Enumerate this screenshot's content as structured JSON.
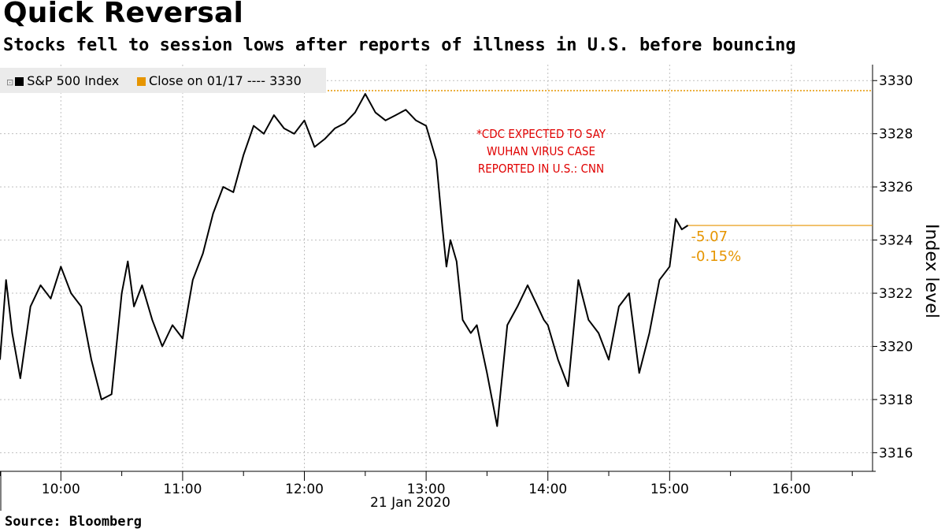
{
  "title": "Quick Reversal",
  "subtitle": "Stocks fell to session lows after reports of illness in U.S. before bouncing",
  "source": "Source:  Bloomberg",
  "colors": {
    "series": "#000000",
    "reference": "#e69500",
    "annotation": "#e00000",
    "grid": "#bfbfbf"
  },
  "legend": {
    "series_label": "S&P 500 Index",
    "reference_label": "Close on 01/17 ---- 3330"
  },
  "annotation": {
    "lines": [
      "*CDC EXPECTED TO SAY",
      "WUHAN VIRUS CASE",
      "REPORTED IN U.S.: CNN"
    ]
  },
  "change": {
    "points": "-5.07",
    "percent": "-0.15%"
  },
  "chart_data": {
    "type": "line",
    "title": "Quick Reversal",
    "subtitle": "Stocks fell to session lows after reports of illness in U.S. before bouncing",
    "xlabel": "21 Jan 2020",
    "ylabel": "Index level",
    "x_ticks": [
      "10:00",
      "11:00",
      "12:00",
      "13:00",
      "14:00",
      "15:00",
      "16:00"
    ],
    "y_ticks": [
      3316,
      3318,
      3320,
      3322,
      3324,
      3326,
      3328,
      3330
    ],
    "xlim": [
      "09:30",
      "16:40"
    ],
    "ylim": [
      3315.3,
      3330.6
    ],
    "grid": true,
    "reference_line": {
      "label": "Close on 01/17",
      "value": 3329.62
    },
    "last_value": 3324.55,
    "series": [
      {
        "name": "S&P 500 Index",
        "x": [
          "09:30",
          "09:33",
          "09:36",
          "09:40",
          "09:45",
          "09:50",
          "09:55",
          "10:00",
          "10:05",
          "10:10",
          "10:15",
          "10:20",
          "10:25",
          "10:30",
          "10:33",
          "10:36",
          "10:40",
          "10:45",
          "10:50",
          "10:55",
          "11:00",
          "11:05",
          "11:10",
          "11:15",
          "11:20",
          "11:25",
          "11:30",
          "11:35",
          "11:40",
          "11:45",
          "11:50",
          "11:55",
          "12:00",
          "12:05",
          "12:10",
          "12:15",
          "12:20",
          "12:25",
          "12:30",
          "12:35",
          "12:40",
          "12:45",
          "12:50",
          "12:55",
          "13:00",
          "13:05",
          "13:08",
          "13:10",
          "13:12",
          "13:15",
          "13:18",
          "13:22",
          "13:25",
          "13:30",
          "13:35",
          "13:40",
          "13:45",
          "13:50",
          "13:55",
          "13:58",
          "14:00",
          "14:05",
          "14:10",
          "14:15",
          "14:20",
          "14:25",
          "14:30",
          "14:35",
          "14:40",
          "14:45",
          "14:50",
          "14:55",
          "15:00",
          "15:03",
          "15:06",
          "15:09"
        ],
        "values": [
          3319.5,
          3322.5,
          3320.5,
          3318.8,
          3321.5,
          3322.3,
          3321.8,
          3323.0,
          3322.0,
          3321.5,
          3319.5,
          3318.0,
          3318.2,
          3322.0,
          3323.2,
          3321.5,
          3322.3,
          3321.0,
          3320.0,
          3320.8,
          3320.3,
          3322.5,
          3323.5,
          3325.0,
          3326.0,
          3325.8,
          3327.2,
          3328.3,
          3328.0,
          3328.7,
          3328.2,
          3328.0,
          3328.5,
          3327.5,
          3327.8,
          3328.2,
          3328.4,
          3328.8,
          3329.5,
          3328.8,
          3328.5,
          3328.7,
          3328.9,
          3328.5,
          3328.3,
          3327.0,
          3324.5,
          3323.0,
          3324.0,
          3323.2,
          3321.0,
          3320.5,
          3320.8,
          3319.0,
          3317.0,
          3320.8,
          3321.5,
          3322.3,
          3321.5,
          3321.0,
          3320.8,
          3319.5,
          3318.5,
          3322.5,
          3321.0,
          3320.5,
          3319.5,
          3321.5,
          3322.0,
          3319.0,
          3320.5,
          3322.5,
          3323.0,
          3324.8,
          3324.4,
          3324.55
        ]
      }
    ]
  }
}
